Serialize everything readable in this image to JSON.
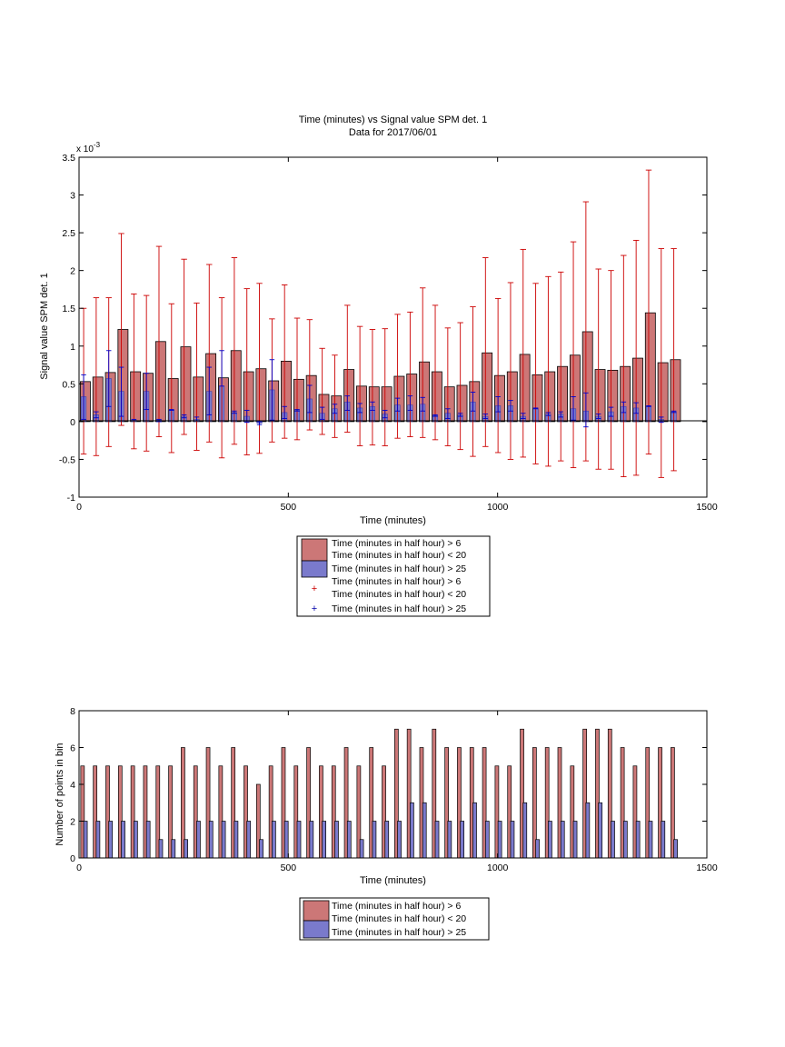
{
  "chart_data": [
    {
      "type": "bar",
      "title": "Time (minutes) vs Signal value SPM det. 1",
      "subtitle": "Data for 2017/06/01",
      "xlabel": "Time (minutes)",
      "ylabel": "Signal value SPM det. 1",
      "y_multiplier_label": "x 10",
      "y_multiplier_exponent": "-3",
      "xlim": [
        0,
        1500
      ],
      "ylim": [
        -1,
        3.5
      ],
      "xticks": [
        0,
        500,
        1000,
        1500
      ],
      "yticks": [
        -1,
        -0.5,
        0,
        0.5,
        1,
        1.5,
        2,
        2.5,
        3,
        3.5
      ],
      "grid": false,
      "legend_placement": "below-center",
      "legend_entries": [
        "Time (minutes in half hour) > 6",
        "Time (minutes in half hour) < 20",
        "Time (minutes in half hour) > 25",
        "Time (minutes in half hour) > 6",
        "Time (minutes in half hour) < 20",
        "Time (minutes in half hour) > 25"
      ],
      "x": [
        15,
        45,
        75,
        105,
        135,
        165,
        195,
        225,
        255,
        285,
        315,
        345,
        375,
        405,
        435,
        465,
        495,
        525,
        555,
        585,
        615,
        645,
        675,
        705,
        735,
        765,
        795,
        825,
        855,
        885,
        915,
        945,
        975,
        1005,
        1035,
        1065,
        1095,
        1125,
        1155,
        1185,
        1215,
        1245,
        1275,
        1305,
        1335,
        1365,
        1395,
        1425
      ],
      "series": [
        {
          "color": "#cc7777",
          "values": [
            0.53,
            0.59,
            0.65,
            1.22,
            0.66,
            0.64,
            1.06,
            0.57,
            0.99,
            0.59,
            0.9,
            0.58,
            0.94,
            0.66,
            0.7,
            0.54,
            0.8,
            0.56,
            0.61,
            0.36,
            0.34,
            0.69,
            0.47,
            0.46,
            0.46,
            0.6,
            0.63,
            0.79,
            0.66,
            0.46,
            0.48,
            0.53,
            0.91,
            0.61,
            0.66,
            0.89,
            0.62,
            0.66,
            0.73,
            0.88,
            1.19,
            0.69,
            0.68,
            0.73,
            0.84,
            1.44,
            0.78,
            0.82
          ],
          "err_low": [
            -0.43,
            -0.45,
            -0.33,
            -0.05,
            -0.36,
            -0.39,
            -0.2,
            -0.41,
            -0.17,
            -0.38,
            -0.27,
            -0.48,
            -0.3,
            -0.44,
            -0.42,
            -0.27,
            -0.22,
            -0.24,
            -0.11,
            -0.17,
            -0.21,
            -0.14,
            -0.32,
            -0.31,
            -0.32,
            -0.22,
            -0.2,
            -0.21,
            -0.24,
            -0.32,
            -0.37,
            -0.46,
            -0.33,
            -0.41,
            -0.5,
            -0.47,
            -0.56,
            -0.59,
            -0.52,
            -0.61,
            -0.52,
            -0.63,
            -0.63,
            -0.73,
            -0.71,
            -0.43,
            -0.74,
            -0.65
          ],
          "err_high": [
            1.5,
            1.64,
            1.64,
            2.49,
            1.69,
            1.67,
            2.32,
            1.56,
            2.15,
            1.57,
            2.08,
            1.64,
            2.17,
            1.76,
            1.83,
            1.36,
            1.81,
            1.37,
            1.35,
            0.97,
            0.88,
            1.54,
            1.26,
            1.22,
            1.23,
            1.42,
            1.45,
            1.77,
            1.54,
            1.24,
            1.31,
            1.52,
            2.17,
            1.63,
            1.84,
            2.28,
            1.83,
            1.92,
            1.98,
            2.38,
            2.91,
            2.02,
            2.0,
            2.2,
            2.4,
            3.33,
            2.29,
            2.29
          ]
        },
        {
          "color": "#7a7acc",
          "values": [
            0.33,
            0.09,
            0.57,
            0.4,
            0.02,
            0.4,
            0.02,
            0.15,
            0.07,
            0.03,
            0.4,
            0.47,
            0.12,
            0.07,
            -0.02,
            0.42,
            0.12,
            0.15,
            0.3,
            0.11,
            0.17,
            0.26,
            0.18,
            0.2,
            0.1,
            0.22,
            0.22,
            0.23,
            0.08,
            0.11,
            0.09,
            0.26,
            0.07,
            0.21,
            0.21,
            0.07,
            0.17,
            0.1,
            0.1,
            0.17,
            0.14,
            0.07,
            0.13,
            0.2,
            0.18,
            0.2,
            0.03,
            0.13
          ],
          "err_low": [
            0.03,
            0.05,
            0.2,
            0.07,
            0.01,
            0.16,
            0.0,
            0.15,
            0.05,
            0.01,
            0.09,
            0.47,
            0.11,
            -0.01,
            -0.04,
            0.02,
            0.04,
            0.14,
            0.12,
            0.03,
            0.11,
            0.15,
            0.12,
            0.15,
            0.05,
            0.14,
            0.15,
            0.14,
            0.07,
            0.04,
            0.07,
            0.14,
            0.04,
            0.13,
            0.14,
            0.04,
            0.17,
            0.08,
            0.06,
            0.02,
            -0.07,
            0.04,
            0.07,
            0.12,
            0.11,
            0.2,
            -0.01,
            0.12
          ],
          "err_high": [
            0.62,
            0.13,
            0.94,
            0.72,
            0.03,
            0.64,
            0.03,
            0.16,
            0.09,
            0.06,
            0.72,
            0.94,
            0.14,
            0.15,
            0.0,
            0.82,
            0.2,
            0.16,
            0.48,
            0.19,
            0.23,
            0.34,
            0.24,
            0.26,
            0.15,
            0.31,
            0.34,
            0.32,
            0.09,
            0.17,
            0.11,
            0.39,
            0.1,
            0.33,
            0.28,
            0.11,
            0.18,
            0.12,
            0.13,
            0.33,
            0.38,
            0.1,
            0.19,
            0.26,
            0.25,
            0.21,
            0.06,
            0.14
          ]
        }
      ]
    },
    {
      "type": "bar",
      "xlabel": "Time (minutes)",
      "ylabel": "Number of points in bin",
      "xlim": [
        0,
        1500
      ],
      "ylim": [
        0,
        8
      ],
      "xticks": [
        0,
        500,
        1000,
        1500
      ],
      "yticks": [
        0,
        2,
        4,
        6,
        8
      ],
      "grid": false,
      "legend_placement": "below-center",
      "legend_entries": [
        "Time (minutes in half hour) > 6",
        "Time (minutes in half hour) < 20",
        "Time (minutes in half hour) > 25"
      ],
      "x": [
        15,
        45,
        75,
        105,
        135,
        165,
        195,
        225,
        255,
        285,
        315,
        345,
        375,
        405,
        435,
        465,
        495,
        525,
        555,
        585,
        615,
        645,
        675,
        705,
        735,
        765,
        795,
        825,
        855,
        885,
        915,
        945,
        975,
        1005,
        1035,
        1065,
        1095,
        1125,
        1155,
        1185,
        1215,
        1245,
        1275,
        1305,
        1335,
        1365,
        1395,
        1425
      ],
      "series": [
        {
          "color": "#cc7777",
          "values": [
            5,
            5,
            5,
            5,
            5,
            5,
            5,
            5,
            6,
            5,
            6,
            5,
            6,
            5,
            4,
            5,
            6,
            5,
            6,
            5,
            5,
            6,
            5,
            6,
            5,
            7,
            7,
            6,
            7,
            6,
            6,
            6,
            6,
            5,
            5,
            7,
            6,
            6,
            6,
            5,
            7,
            7,
            7,
            6,
            5,
            6,
            6,
            6
          ]
        },
        {
          "color": "#7a7acc",
          "values": [
            2,
            2,
            2,
            2,
            2,
            2,
            1,
            1,
            1,
            2,
            2,
            2,
            2,
            2,
            1,
            2,
            2,
            2,
            2,
            2,
            2,
            2,
            1,
            2,
            2,
            2,
            3,
            3,
            2,
            2,
            2,
            3,
            2,
            2,
            2,
            3,
            1,
            2,
            2,
            2,
            3,
            3,
            2,
            2,
            2,
            2,
            2,
            1
          ]
        }
      ]
    }
  ]
}
